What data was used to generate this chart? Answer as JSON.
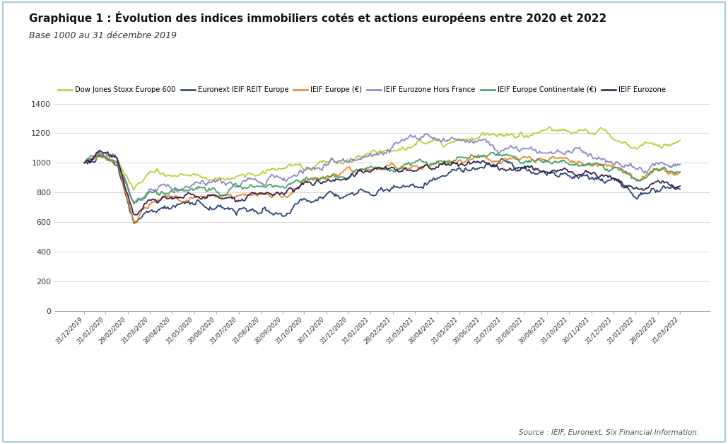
{
  "title": "Graphique 1 : Évolution des indices immobiliers cotés et actions européens entre 2020 et 2022",
  "subtitle": "Base 1000 au 31 décembre 2019",
  "source": "Source : IEIF, Euronext, Six Financial Information.",
  "background_color": "#ffffff",
  "plot_bg_color": "#ffffff",
  "series": [
    {
      "name": "Dow Jones Stoxx Europe 600",
      "color": "#b5cc2e",
      "linewidth": 1.3
    },
    {
      "name": "Euronext IEIF REIT Europe",
      "color": "#1e3a6e",
      "linewidth": 1.3
    },
    {
      "name": "IEIF Europe (€)",
      "color": "#e8841e",
      "linewidth": 1.3
    },
    {
      "name": "IEIF Eurozone Hors France",
      "color": "#8b7fc7",
      "linewidth": 1.3
    },
    {
      "name": "IEIF Europe Continentale (€)",
      "color": "#3e9e5e",
      "linewidth": 1.3
    },
    {
      "name": "IEIF Eurozone",
      "color": "#2d1a4a",
      "linewidth": 1.3
    }
  ],
  "xtick_labels": [
    "31/12/2019",
    "31/01/2020",
    "29/02/2020",
    "31/03/2020",
    "30/04/2020",
    "31/05/2020",
    "30/06/2020",
    "31/07/2020",
    "31/08/2020",
    "30/09/2020",
    "31/10/2020",
    "30/11/2020",
    "31/12/2020",
    "31/01/2021",
    "28/02/2021",
    "31/03/2021",
    "30/04/2021",
    "31/05/2021",
    "30/06/2021",
    "31/07/2021",
    "31/08/2021",
    "30/09/2021",
    "31/10/2021",
    "30/11/2021",
    "31/12/2021",
    "31/01/2022",
    "28/02/2022",
    "31/03/2022"
  ],
  "ytick_vals": [
    0,
    200,
    400,
    600,
    800,
    1000,
    1200,
    1400
  ],
  "ylim": [
    0,
    1440
  ],
  "legend_fontsize": 7.2,
  "title_fontsize": 11,
  "subtitle_fontsize": 9
}
